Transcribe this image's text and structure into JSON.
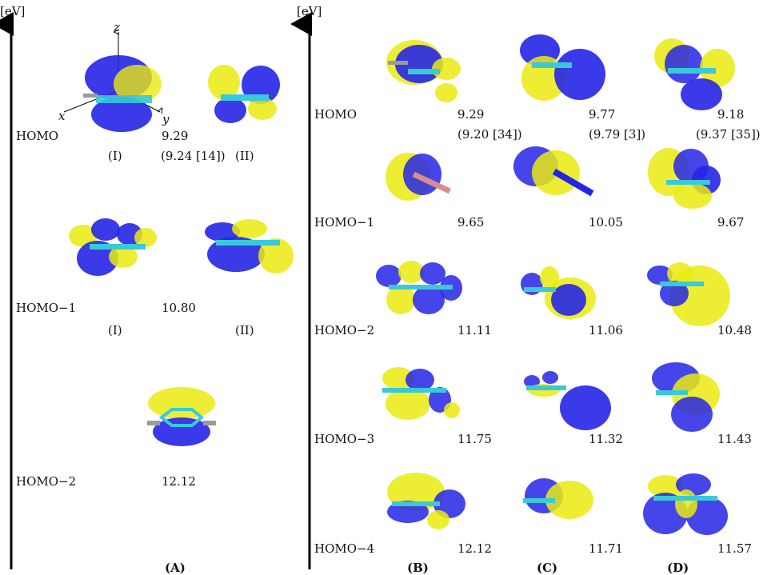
{
  "colors": {
    "lobe_blue": "#2525e6",
    "lobe_yellow": "#eaea10",
    "bond_cyan": "#39c9d9",
    "bond_grey": "#9a9a9a"
  },
  "axis": {
    "unit_label": "[eV]"
  },
  "panel_labels": {
    "a": "(A)",
    "b": "(B)",
    "c": "(C)",
    "d": "(D)"
  },
  "axes3d": {
    "x": "x",
    "y": "y",
    "z": "z"
  },
  "panel_a": {
    "homo": {
      "label": "HOMO",
      "value": "9.29",
      "ref": "(9.24 [14])",
      "sub_i": "(I)",
      "sub_ii": "(II)"
    },
    "homo1": {
      "label": "HOMO−1",
      "value": "10.80",
      "sub_i": "(I)",
      "sub_ii": "(II)"
    },
    "homo2": {
      "label": "HOMO−2",
      "value": "12.12"
    }
  },
  "panel_bcd": {
    "row_labels": [
      "HOMO",
      "HOMO−1",
      "HOMO−2",
      "HOMO−3",
      "HOMO−4"
    ],
    "b": {
      "values": [
        "9.29",
        "9.65",
        "11.11",
        "11.75",
        "12.12"
      ],
      "ref": "(9.20 [34])"
    },
    "c": {
      "values": [
        "9.77",
        "10.05",
        "11.06",
        "11.32",
        "11.71"
      ],
      "ref": "(9.79 [3])"
    },
    "d": {
      "values": [
        "9.18",
        "9.67",
        "10.48",
        "11.43",
        "11.57"
      ],
      "ref": "(9.37 [35])"
    }
  }
}
